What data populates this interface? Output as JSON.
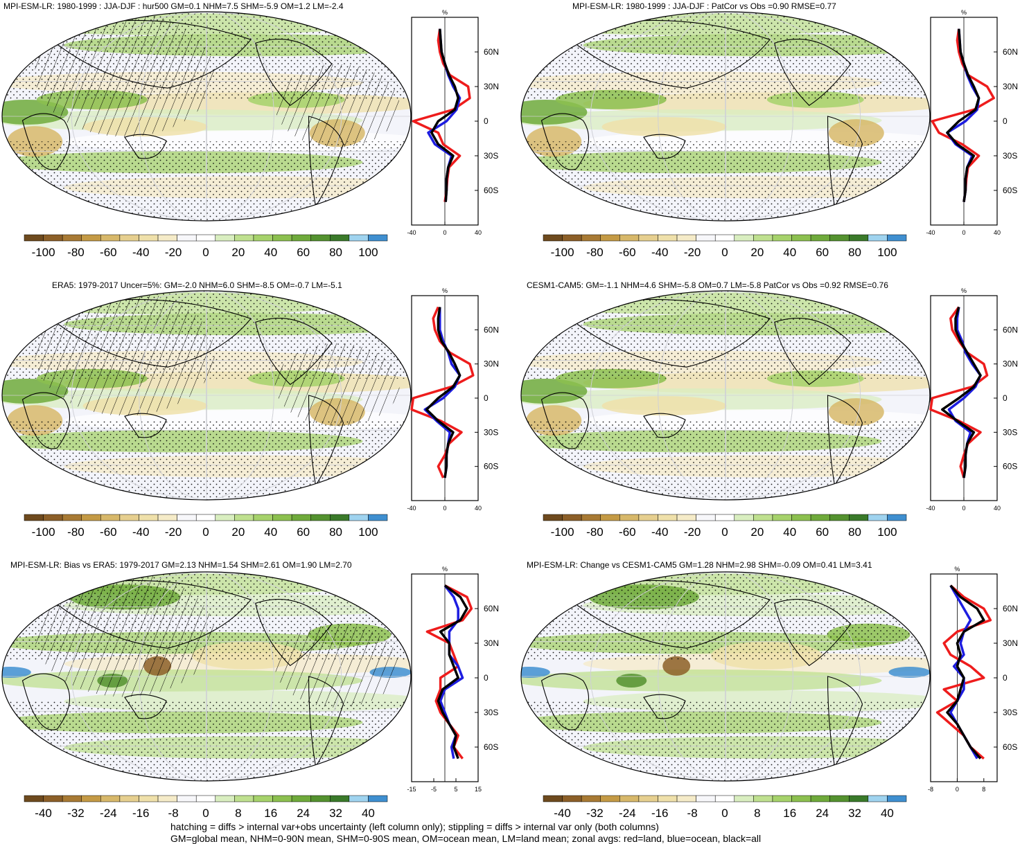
{
  "footer": {
    "line1": "hatching = diffs > internal var+obs uncertainty (left column only); stippling = diffs > internal var only (both columns)",
    "line2": "GM=global mean, NHM=0-90N mean, SHM=0-90S mean, OM=ocean mean, LM=land mean; zonal avgs: red=land, blue=ocean, black=all"
  },
  "colors": {
    "palette": [
      "#6e4a1e",
      "#8c5f28",
      "#a87a34",
      "#c49a45",
      "#d7b86a",
      "#e6cf8f",
      "#efe0aa",
      "#f5ebc8",
      "#f7f7fa",
      "#ffffff",
      "#d9eec0",
      "#bfe08f",
      "#a6d26b",
      "#8cc04f",
      "#6faa3b",
      "#54922f",
      "#3a7a2a",
      "#9fd3ef",
      "#3f8fd0"
    ],
    "ocean": "#ffffff",
    "red": "#ee1c1c",
    "blue": "#1d1de0",
    "black": "#000000"
  },
  "colorbar_ticks": {
    "full": [
      "-100",
      "-80",
      "-60",
      "-40",
      "-20",
      "0",
      "20",
      "40",
      "60",
      "80",
      "100"
    ],
    "diff": [
      "-40",
      "-32",
      "-24",
      "-16",
      "-8",
      "0",
      "8",
      "16",
      "24",
      "32",
      "40"
    ]
  },
  "lat_ticks": [
    "60N",
    "30N",
    "0",
    "30S",
    "60S"
  ],
  "unit_label": "%",
  "panels": [
    {
      "id": "p1",
      "title": "MPI-ESM-LR: 1980-1999 : JJA-DJF : hur500 GM=0.1 NHM=7.5 SHM=-5.9 OM=1.2 LM=-2.4",
      "cb": "full",
      "zonal_ticks": [
        "-40",
        "0",
        "40"
      ],
      "hatched": true
    },
    {
      "id": "p2",
      "title": "MPI-ESM-LR: 1980-1999 : JJA-DJF : PatCor vs Obs =0.90 RMSE=0.77",
      "cb": "full",
      "zonal_ticks": [
        "-40",
        "0",
        "40"
      ],
      "hatched": false
    },
    {
      "id": "p3",
      "title": "ERA5: 1979-2017 Uncer=5%: GM=-2.0 NHM=6.0 SHM=-8.5 OM=-0.7 LM=-5.1",
      "cb": "full",
      "zonal_ticks": [
        "-40",
        "0",
        "40"
      ],
      "hatched": true
    },
    {
      "id": "p4",
      "title": "CESM1-CAM5: GM=-1.1 NHM=4.6 SHM=-5.8 OM=0.7 LM=-5.8 PatCor vs Obs =0.92 RMSE=0.76",
      "cb": "full",
      "zonal_ticks": [
        "-40",
        "0",
        "40"
      ],
      "hatched": false
    },
    {
      "id": "p5",
      "title": "MPI-ESM-LR: Bias vs ERA5: 1979-2017 GM=2.13 NHM=1.54 SHM=2.61 OM=1.90 LM=2.70",
      "cb": "diff",
      "zonal_ticks": [
        "-15",
        "-5",
        "5",
        "15"
      ],
      "hatched": true
    },
    {
      "id": "p6",
      "title": "MPI-ESM-LR: Change vs CESM1-CAM5 GM=1.28 NHM=2.98 SHM=-0.09 OM=0.41 LM=3.41",
      "cb": "diff",
      "zonal_ticks": [
        "-8",
        "0",
        "8"
      ],
      "hatched": false
    }
  ],
  "chart_data": [
    {
      "type": "line",
      "title": "MPI-ESM-LR: 1980-1999 : JJA-DJF : hur500 GM=0.1 NHM=7.5 SHM=-5.9 OM=1.2 LM=-2.4",
      "xlabel": "%",
      "xlim": [
        -40,
        40
      ],
      "ylim": [
        -90,
        90
      ],
      "y": [
        -70,
        -60,
        -50,
        -40,
        -30,
        -20,
        -10,
        0,
        10,
        20,
        30,
        40,
        50,
        60,
        70,
        80
      ],
      "series": [
        {
          "values": [
            0,
            2,
            3,
            5,
            18,
            -2,
            -8,
            -38,
            10,
            30,
            28,
            6,
            -2,
            -6,
            -8,
            -6
          ]
        },
        {
          "values": [
            1,
            2,
            2,
            4,
            8,
            -12,
            -20,
            2,
            14,
            18,
            10,
            4,
            0,
            -4,
            -5,
            -6
          ]
        },
        {
          "values": [
            1,
            2,
            2,
            4,
            10,
            -8,
            -16,
            -8,
            12,
            16,
            12,
            5,
            0,
            -4,
            -5,
            -6
          ]
        }
      ]
    },
    {
      "type": "line",
      "title": "MPI-ESM-LR: 1980-1999 : JJA-DJF : PatCor vs Obs =0.90 RMSE=0.77",
      "xlabel": "%",
      "xlim": [
        -40,
        40
      ],
      "ylim": [
        -90,
        90
      ],
      "y": [
        -70,
        -60,
        -50,
        -40,
        -30,
        -20,
        -10,
        0,
        10,
        20,
        30,
        40,
        50,
        60,
        70,
        80
      ],
      "series": [
        {
          "values": [
            0,
            2,
            3,
            5,
            18,
            -2,
            -30,
            -38,
            12,
            36,
            28,
            5,
            -2,
            -6,
            -8,
            -6
          ]
        },
        {
          "values": [
            0,
            2,
            2,
            4,
            10,
            -10,
            -20,
            2,
            16,
            18,
            10,
            4,
            0,
            -4,
            -5,
            -6
          ]
        },
        {
          "values": [
            0,
            2,
            2,
            4,
            12,
            -8,
            -20,
            -6,
            14,
            18,
            12,
            5,
            0,
            -4,
            -5,
            -6
          ]
        }
      ]
    },
    {
      "type": "line",
      "title": "ERA5: 1979-2017 Uncer=5%: GM=-2.0 NHM=6.0 SHM=-8.5 OM=-0.7 LM=-5.1",
      "xlabel": "%",
      "xlim": [
        -40,
        40
      ],
      "ylim": [
        -90,
        90
      ],
      "y": [
        -70,
        -60,
        -50,
        -40,
        -30,
        -20,
        -10,
        0,
        10,
        20,
        30,
        40,
        50,
        60,
        70,
        80
      ],
      "series": [
        {
          "values": [
            -2,
            -8,
            0,
            5,
            20,
            -5,
            -40,
            -38,
            8,
            34,
            30,
            6,
            -6,
            -12,
            -14,
            -8
          ]
        },
        {
          "values": [
            0,
            2,
            2,
            4,
            6,
            -10,
            -24,
            -2,
            12,
            18,
            8,
            4,
            -2,
            -6,
            -6,
            -6
          ]
        },
        {
          "values": [
            0,
            2,
            2,
            4,
            10,
            -8,
            -22,
            -8,
            10,
            18,
            12,
            5,
            -4,
            -8,
            -8,
            -6
          ]
        }
      ]
    },
    {
      "type": "line",
      "title": "CESM1-CAM5: GM=-1.1 NHM=4.6 SHM=-5.8 OM=0.7 LM=-5.8 PatCor vs Obs =0.92 RMSE=0.76",
      "xlabel": "%",
      "xlim": [
        -40,
        40
      ],
      "ylim": [
        -90,
        90
      ],
      "y": [
        -70,
        -60,
        -50,
        -40,
        -30,
        -20,
        -10,
        0,
        10,
        20,
        30,
        40,
        50,
        60,
        70,
        80
      ],
      "series": [
        {
          "values": [
            0,
            -4,
            0,
            5,
            20,
            -6,
            -40,
            -38,
            10,
            28,
            24,
            4,
            -6,
            -14,
            -16,
            -6
          ]
        },
        {
          "values": [
            0,
            2,
            2,
            4,
            8,
            -10,
            -18,
            0,
            14,
            20,
            10,
            2,
            -2,
            -8,
            -8,
            -6
          ]
        },
        {
          "values": [
            0,
            2,
            2,
            4,
            12,
            -8,
            -26,
            -6,
            12,
            20,
            12,
            4,
            -4,
            -10,
            -10,
            -6
          ]
        }
      ]
    },
    {
      "type": "line",
      "title": "MPI-ESM-LR: Bias vs ERA5: 1979-2017 GM=2.13 NHM=1.54 SHM=2.61 OM=1.90 LM=2.70",
      "xlabel": "%",
      "xlim": [
        -15,
        15
      ],
      "ylim": [
        -90,
        90
      ],
      "y": [
        -70,
        -60,
        -50,
        -40,
        -30,
        -20,
        -10,
        0,
        10,
        20,
        30,
        40,
        50,
        60,
        70,
        80
      ],
      "series": [
        {
          "values": [
            8,
            4,
            6,
            2,
            -2,
            -4,
            -2,
            -2,
            6,
            4,
            2,
            -8,
            8,
            12,
            10,
            0
          ]
        },
        {
          "values": [
            4,
            3,
            5,
            2,
            0,
            -2,
            0,
            8,
            6,
            2,
            2,
            2,
            6,
            6,
            4,
            0
          ]
        },
        {
          "values": [
            6,
            4,
            5,
            2,
            -1,
            -3,
            -1,
            6,
            4,
            2,
            2,
            -2,
            7,
            10,
            7,
            0
          ]
        }
      ]
    },
    {
      "type": "line",
      "title": "MPI-ESM-LR: Change vs CESM1-CAM5 GM=1.28 NHM=2.98 SHM=-0.09 OM=0.41 LM=3.41",
      "xlabel": "%",
      "xlim": [
        -8,
        12
      ],
      "ylim": [
        -90,
        90
      ],
      "y": [
        -70,
        -60,
        -50,
        -40,
        -30,
        -20,
        -10,
        0,
        10,
        20,
        30,
        40,
        50,
        60,
        70,
        80
      ],
      "series": [
        {
          "values": [
            8,
            4,
            2,
            -2,
            -6,
            0,
            -4,
            8,
            4,
            -2,
            -4,
            0,
            10,
            8,
            2,
            -2
          ]
        },
        {
          "values": [
            6,
            4,
            2,
            0,
            -2,
            0,
            2,
            2,
            -1,
            2,
            1,
            2,
            4,
            2,
            0,
            -2
          ]
        },
        {
          "values": [
            7,
            4,
            2,
            0,
            -3,
            0,
            1,
            2,
            0,
            1,
            0,
            2,
            8,
            6,
            1,
            -2
          ]
        }
      ]
    }
  ]
}
